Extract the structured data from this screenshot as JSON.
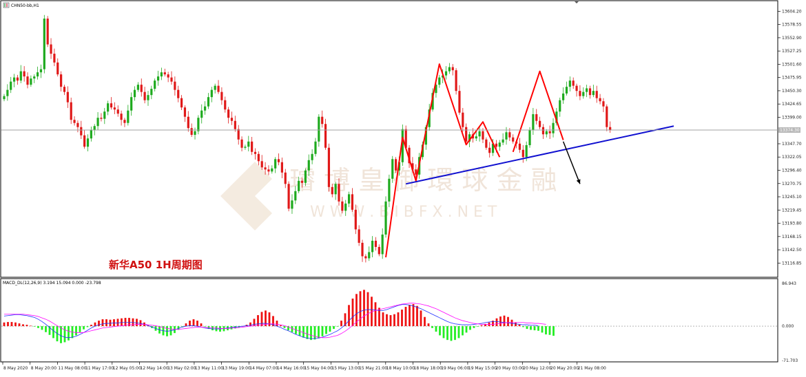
{
  "chart": {
    "symbol_label": "CHN50-bb,H1",
    "chart_title": "新华A50 1H周期图",
    "current_price_label": "13374.30",
    "watermark_cn": "璿 博 皇 御 環 球 金 融",
    "watermark_url": "W W W . B I B F X . N E T",
    "colors": {
      "bull": "#1eaa1e",
      "bear": "#e01818",
      "pattern": "#ff0000",
      "trendline": "#1010d0",
      "arrow": "#000000",
      "macd_line": "#2030ff",
      "signal_line": "#ff00ff"
    }
  },
  "price_axis": {
    "labels": [
      "13604.20",
      "13578.55",
      "13552.90",
      "13527.25",
      "13501.60",
      "13475.95",
      "13450.30",
      "13424.65",
      "13399.00",
      "13347.70",
      "13322.05",
      "13296.40",
      "13270.75",
      "13245.10",
      "13219.45",
      "13193.80",
      "13168.15",
      "13142.50",
      "13116.85"
    ]
  },
  "macd_panel": {
    "label": "MACD_DL(12,26,9) 3.194 15.094 0.000 -23.798",
    "axis_labels": [
      "86.943",
      "0.000",
      "-71.703"
    ]
  },
  "time_axis": {
    "labels": [
      "8 May 2020",
      "8 May 20:00",
      "11 May 08:00",
      "11 May 17:00",
      "12 May 05:00",
      "12 May 14:00",
      "13 May 02:00",
      "13 May 11:00",
      "13 May 19:00",
      "14 May 07:00",
      "14 May 16:00",
      "15 May 04:00",
      "15 May 13:00",
      "15 May 21:00",
      "18 May 10:00",
      "18 May 18:00",
      "19 May 06:00",
      "19 May 15:00",
      "20 May 03:00",
      "20 May 12:00",
      "20 May 20:00",
      "21 May 08:00"
    ]
  },
  "chart_data": {
    "type": "candlestick",
    "title": "新华A50 1H周期图",
    "ylim": [
      13100,
      13610
    ],
    "closes": [
      13440,
      13452,
      13468,
      13476,
      13470,
      13488,
      13478,
      13462,
      13474,
      13478,
      13486,
      13492,
      13590,
      13540,
      13522,
      13505,
      13482,
      13458,
      13448,
      13428,
      13394,
      13388,
      13380,
      13364,
      13342,
      13358,
      13375,
      13382,
      13398,
      13396,
      13410,
      13426,
      13418,
      13414,
      13406,
      13394,
      13388,
      13412,
      13438,
      13452,
      13462,
      13448,
      13432,
      13442,
      13454,
      13470,
      13478,
      13486,
      13482,
      13476,
      13468,
      13452,
      13436,
      13418,
      13400,
      13378,
      13365,
      13372,
      13398,
      13412,
      13420,
      13438,
      13452,
      13460,
      13448,
      13432,
      13414,
      13398,
      13392,
      13376,
      13356,
      13340,
      13342,
      13352,
      13332,
      13328,
      13314,
      13302,
      13298,
      13294,
      13300,
      13318,
      13312,
      13292,
      13270,
      13222,
      13238,
      13256,
      13276,
      13272,
      13296,
      13316,
      13328,
      13352,
      13400,
      13386,
      13340,
      13264,
      13250,
      13270,
      13236,
      13218,
      13232,
      13250,
      13220,
      13182,
      13156,
      13130,
      13126,
      13138,
      13160,
      13148,
      13134,
      13172,
      13236,
      13280,
      13318,
      13296,
      13312,
      13376,
      13340,
      13310,
      13298,
      13288,
      13322,
      13346,
      13380,
      13414,
      13446,
      13462,
      13476,
      13480,
      13488,
      13496,
      13490,
      13450,
      13408,
      13380,
      13352,
      13366,
      13358,
      13362,
      13372,
      13356,
      13340,
      13330,
      13348,
      13342,
      13350,
      13356,
      13370,
      13360,
      13352,
      13348,
      13336,
      13322,
      13345,
      13375,
      13405,
      13392,
      13380,
      13366,
      13372,
      13368,
      13388,
      13410,
      13432,
      13445,
      13458,
      13470,
      13460,
      13450,
      13440,
      13448,
      13455,
      13442,
      13450,
      13436,
      13430,
      13420,
      13380,
      13374
    ],
    "levels": {
      "current_price": 13374.3
    },
    "patterns": {
      "zigzag_left": [
        [
          114,
          13128
        ],
        [
          119,
          13360
        ],
        [
          123,
          13276
        ],
        [
          130,
          13502
        ],
        [
          138,
          13346
        ],
        [
          143,
          13390
        ],
        [
          148,
          13322
        ]
      ],
      "zigzag_right": [
        [
          152,
          13332
        ],
        [
          160,
          13488
        ],
        [
          167,
          13355
        ]
      ],
      "trendline": [
        [
          120,
          13270
        ],
        [
          200,
          13382
        ]
      ],
      "arrow": [
        [
          167,
          13352
        ],
        [
          172,
          13270
        ]
      ]
    },
    "macd": {
      "ylim": [
        -71.703,
        86.943
      ],
      "histogram": [
        8,
        9,
        9,
        8,
        6,
        4,
        3,
        1,
        -1,
        -4,
        -8,
        -13,
        -19,
        -26,
        -33,
        -37,
        -35,
        -31,
        -26,
        -20,
        -13,
        -7,
        -2,
        3,
        8,
        12,
        15,
        15,
        14,
        15,
        16,
        17,
        18,
        18,
        17,
        16,
        13,
        8,
        2,
        -4,
        -10,
        -16,
        -20,
        -22,
        -20,
        -15,
        -8,
        -1,
        6,
        12,
        15,
        12,
        6,
        -1,
        -6,
        -9,
        -11,
        -12,
        -11,
        -9,
        -7,
        -5,
        -3,
        0,
        3,
        8,
        16,
        24,
        31,
        34,
        30,
        22,
        12,
        2,
        -4,
        -9,
        -13,
        -17,
        -21,
        -25,
        -28,
        -30,
        -29,
        -26,
        -22,
        -17,
        -12,
        -6,
        -1,
        12,
        28,
        46,
        60,
        70,
        76,
        79,
        74,
        64,
        52,
        40,
        30,
        26,
        24,
        26,
        30,
        36,
        42,
        46,
        48,
        44,
        34,
        20,
        6,
        -4,
        -12,
        -20,
        -26,
        -30,
        -32,
        -30,
        -26,
        -20,
        -14,
        -8,
        -4,
        -1,
        2,
        5,
        8,
        12,
        17,
        21,
        23,
        20,
        14,
        8,
        3,
        -2,
        -6,
        -8,
        -9,
        -10,
        -14,
        -18,
        -19,
        -21
      ],
      "macd_line": [
        22,
        23,
        24,
        25,
        25,
        24,
        23,
        21,
        19,
        15,
        10,
        4,
        -3,
        -10,
        -16,
        -21,
        -24,
        -25,
        -24,
        -22,
        -18,
        -14,
        -9,
        -4,
        0,
        3,
        5,
        6,
        6,
        7,
        7,
        8,
        8,
        8,
        8,
        7,
        6,
        4,
        1,
        -2,
        -5,
        -8,
        -10,
        -11,
        -10,
        -8,
        -5,
        -2,
        0,
        1,
        1,
        0,
        -2,
        -4,
        -5,
        -6,
        -6,
        -6,
        -5,
        -4,
        -3,
        -2,
        -1,
        0,
        1,
        2,
        4,
        5,
        6,
        6,
        5,
        3,
        0,
        -3,
        -7,
        -10,
        -14,
        -18,
        -21,
        -24,
        -26,
        -27,
        -27,
        -26,
        -24,
        -21,
        -18,
        -14,
        -10,
        -4,
        3,
        12,
        20,
        27,
        32,
        35,
        36,
        36,
        35,
        34,
        34,
        36,
        39,
        42,
        45,
        47,
        47,
        46,
        44,
        41,
        38,
        34,
        30,
        26,
        22,
        18,
        14,
        10,
        7,
        5,
        4,
        3,
        3,
        3,
        4,
        5,
        6,
        8,
        9,
        10,
        10,
        9,
        8,
        7,
        6,
        5,
        4,
        3,
        3,
        2,
        2,
        1
      ],
      "signal_line": [
        26,
        26,
        26,
        26,
        26,
        26,
        25,
        24,
        23,
        21,
        18,
        15,
        11,
        6,
        1,
        -4,
        -8,
        -11,
        -13,
        -14,
        -14,
        -14,
        -12,
        -10,
        -8,
        -6,
        -4,
        -3,
        -2,
        -1,
        0,
        1,
        2,
        3,
        3,
        4,
        4,
        4,
        3,
        2,
        1,
        -1,
        -3,
        -5,
        -6,
        -7,
        -7,
        -6,
        -5,
        -4,
        -3,
        -2,
        -2,
        -3,
        -3,
        -4,
        -4,
        -5,
        -5,
        -5,
        -4,
        -4,
        -3,
        -2,
        -1,
        0,
        1,
        2,
        3,
        4,
        5,
        5,
        4,
        3,
        1,
        -2,
        -5,
        -8,
        -11,
        -14,
        -17,
        -20,
        -22,
        -24,
        -25,
        -25,
        -24,
        -22,
        -20,
        -16,
        -11,
        -5,
        2,
        9,
        16,
        22,
        27,
        31,
        34,
        36,
        38,
        40,
        42,
        44,
        46,
        48,
        49,
        50,
        50,
        49,
        48,
        46,
        44,
        41,
        38,
        34,
        30,
        26,
        22,
        18,
        15,
        12,
        10,
        8,
        6,
        5,
        4,
        4,
        4,
        4,
        5,
        6,
        7,
        8,
        8,
        8,
        8,
        8,
        7,
        7,
        6,
        6,
        5,
        4
      ]
    }
  }
}
